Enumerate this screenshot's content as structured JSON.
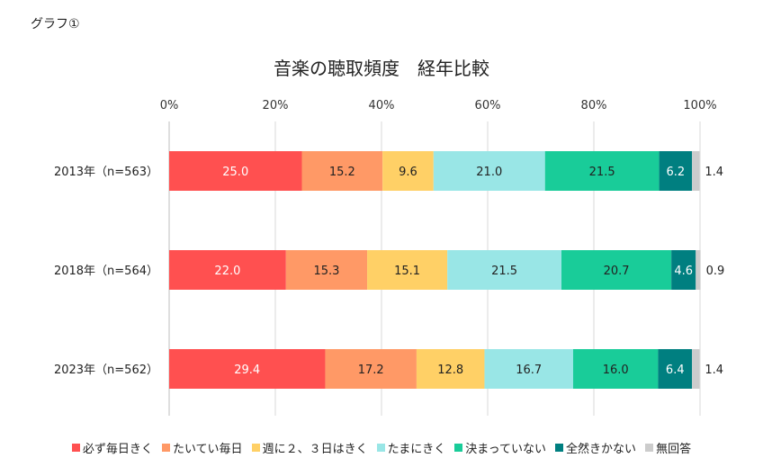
{
  "figure_label": "グラフ①",
  "chart_data": {
    "type": "bar",
    "orientation": "horizontal",
    "stacked": true,
    "title": "音楽の聴取頻度　経年比較",
    "xlabel": "",
    "ylabel": "",
    "xlim": [
      0,
      100
    ],
    "x_ticks": [
      "0%",
      "20%",
      "40%",
      "60%",
      "80%",
      "100%"
    ],
    "categories": [
      "2013年（n=563）",
      "2018年（n=564）",
      "2023年（n=562）"
    ],
    "series": [
      {
        "name": "必ず毎日きく",
        "color": "#ff5050",
        "label_color": "#ffffff",
        "values": [
          25.0,
          22.0,
          29.4
        ]
      },
      {
        "name": "たいてい毎日",
        "color": "#ff9966",
        "label_color": "#222222",
        "values": [
          15.2,
          15.3,
          17.2
        ]
      },
      {
        "name": "週に２、３日はきく",
        "color": "#ffd066",
        "label_color": "#222222",
        "values": [
          9.6,
          15.1,
          12.8
        ]
      },
      {
        "name": "たまにきく",
        "color": "#99e6e6",
        "label_color": "#222222",
        "values": [
          21.0,
          21.5,
          16.7
        ]
      },
      {
        "name": "決まっていない",
        "color": "#19cc99",
        "label_color": "#222222",
        "values": [
          21.5,
          20.7,
          16.0
        ]
      },
      {
        "name": "全然きかない",
        "color": "#007f80",
        "label_color": "#ffffff",
        "values": [
          6.2,
          4.6,
          6.4
        ]
      },
      {
        "name": "無回答",
        "color": "#cccccc",
        "label_color": "#222222",
        "values": [
          1.4,
          0.9,
          1.4
        ]
      }
    ],
    "gridlines": true,
    "legend_position": "bottom"
  }
}
